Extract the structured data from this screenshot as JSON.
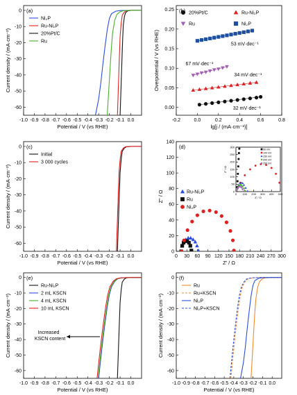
{
  "chart_data": [
    {
      "id": "a",
      "type": "line",
      "panel_label": "(a)",
      "xlabel": "Potential / V (vs RHE)",
      "ylabel": "Current density / (mA·cm⁻²)",
      "xlim": [
        -1.0,
        0.1
      ],
      "ylim": [
        -65,
        3
      ],
      "xticks": [
        -1.0,
        -0.9,
        -0.8,
        -0.7,
        -0.6,
        -0.5,
        -0.4,
        -0.3,
        -0.2,
        -0.1,
        0.0
      ],
      "yticks": [
        0,
        -10,
        -20,
        -30,
        -40,
        -50,
        -60
      ],
      "legend": "top-left",
      "series": [
        {
          "name": "Ni₂P",
          "color": "#2b4de0",
          "x": [
            -0.33,
            -0.3,
            -0.28,
            -0.26,
            -0.24,
            -0.22,
            -0.2,
            -0.18,
            -0.14,
            -0.1,
            0.0,
            0.1
          ],
          "y": [
            -65,
            -55,
            -45,
            -33,
            -22,
            -12,
            -5,
            -2,
            -0.5,
            -0.1,
            0,
            0
          ]
        },
        {
          "name": "Ru-Ni₂P",
          "color": "#e02020",
          "x": [
            -0.125,
            -0.12,
            -0.115,
            -0.11,
            -0.105,
            -0.1,
            -0.09,
            -0.08,
            -0.06,
            -0.04,
            0.0,
            0.1
          ],
          "y": [
            -65,
            -55,
            -45,
            -35,
            -25,
            -16,
            -8,
            -3,
            -1,
            -0.2,
            0,
            0
          ]
        },
        {
          "name": "20%Pt/C",
          "color": "#111111",
          "x": [
            -0.1,
            -0.095,
            -0.09,
            -0.085,
            -0.08,
            -0.075,
            -0.07,
            -0.06,
            -0.05,
            -0.03,
            0.0,
            0.1
          ],
          "y": [
            -65,
            -55,
            -45,
            -35,
            -25,
            -16,
            -9,
            -4,
            -1.5,
            -0.3,
            0,
            0
          ]
        },
        {
          "name": "Ru",
          "color": "#4caf2a",
          "x": [
            -0.22,
            -0.21,
            -0.2,
            -0.19,
            -0.18,
            -0.17,
            -0.15,
            -0.13,
            -0.1,
            -0.07,
            0.0,
            0.1
          ],
          "y": [
            -65,
            -54,
            -43,
            -32,
            -22,
            -14,
            -6,
            -2.5,
            -0.8,
            -0.2,
            0,
            0
          ]
        }
      ]
    },
    {
      "id": "b",
      "type": "scatter",
      "panel_label": "(b)",
      "xlabel": "lg[j / (mA·cm⁻²)]",
      "ylabel": "Overpotential / V (vs RHE)",
      "xlim": [
        -0.2,
        0.8
      ],
      "ylim": [
        -0.02,
        0.26
      ],
      "xticks": [
        -0.2,
        0.0,
        0.2,
        0.4,
        0.6,
        0.8
      ],
      "yticks": [
        0.0,
        0.05,
        0.1,
        0.15,
        0.2,
        0.25
      ],
      "legend": "top",
      "series": [
        {
          "name": "20%Pt/C",
          "color": "#111111",
          "marker": "circle",
          "x": [
            0.02,
            0.08,
            0.14,
            0.2,
            0.26,
            0.32,
            0.38,
            0.44,
            0.5,
            0.56,
            0.6
          ],
          "y": [
            0.007,
            0.009,
            0.011,
            0.013,
            0.015,
            0.017,
            0.019,
            0.021,
            0.023,
            0.025,
            0.027
          ]
        },
        {
          "name": "Ru-Ni₂P",
          "color": "#e02020",
          "marker": "triangle-up",
          "x": [
            -0.04,
            0.02,
            0.08,
            0.14,
            0.2,
            0.26,
            0.32,
            0.38,
            0.44,
            0.5,
            0.56
          ],
          "y": [
            0.044,
            0.046,
            0.048,
            0.05,
            0.052,
            0.054,
            0.056,
            0.058,
            0.06,
            0.062,
            0.064
          ]
        },
        {
          "name": "Ru",
          "color": "#a060b0",
          "marker": "triangle-down",
          "x": [
            -0.04,
            0.0,
            0.04,
            0.08,
            0.12,
            0.16,
            0.2,
            0.24,
            0.28
          ],
          "y": [
            0.082,
            0.085,
            0.088,
            0.09,
            0.093,
            0.096,
            0.098,
            0.101,
            0.104
          ]
        },
        {
          "name": "Ni₂P",
          "color": "#1f4fa0",
          "marker": "square",
          "x": [
            0.0,
            0.04,
            0.08,
            0.12,
            0.16,
            0.2,
            0.24,
            0.28,
            0.32,
            0.36,
            0.4,
            0.44,
            0.48,
            0.52
          ],
          "y": [
            0.17,
            0.172,
            0.174,
            0.176,
            0.178,
            0.18,
            0.182,
            0.184,
            0.186,
            0.188,
            0.19,
            0.192,
            0.194,
            0.196
          ]
        }
      ],
      "annotations": [
        {
          "text": "53 mV·dec⁻¹",
          "x": 0.45,
          "y": 0.158,
          "color": "#1f4fa0"
        },
        {
          "text": "67 mV·dec⁻¹",
          "x": 0.02,
          "y": 0.108,
          "color": "#a060b0"
        },
        {
          "text": "34 mV·dec⁻¹",
          "x": 0.48,
          "y": 0.079,
          "color": "#e02020"
        },
        {
          "text": "32 mV·dec⁻¹",
          "x": 0.47,
          "y": -0.006,
          "color": "#111111"
        }
      ]
    },
    {
      "id": "c",
      "type": "line",
      "panel_label": "(c)",
      "xlabel": "Potential / V (vs RHE)",
      "ylabel": "Current density / (mA·cm⁻²)",
      "xlim": [
        -1.0,
        0.1
      ],
      "ylim": [
        -65,
        3
      ],
      "xticks": [
        -1.0,
        -0.9,
        -0.8,
        -0.7,
        -0.6,
        -0.5,
        -0.4,
        -0.3,
        -0.2,
        -0.1,
        0.0
      ],
      "yticks": [
        0,
        -10,
        -20,
        -30,
        -40,
        -50,
        -60
      ],
      "legend": "top-left",
      "series": [
        {
          "name": "Initial",
          "color": "#111111",
          "x": [
            -0.125,
            -0.12,
            -0.115,
            -0.11,
            -0.105,
            -0.1,
            -0.09,
            -0.08,
            -0.06,
            -0.04,
            0.0,
            0.1
          ],
          "y": [
            -65,
            -55,
            -45,
            -35,
            -25,
            -16,
            -8,
            -3,
            -1,
            -0.2,
            0,
            0
          ]
        },
        {
          "name": "3 000 cycles",
          "color": "#e02020",
          "x": [
            -0.135,
            -0.13,
            -0.125,
            -0.12,
            -0.115,
            -0.11,
            -0.1,
            -0.09,
            -0.07,
            -0.05,
            0.0,
            0.1
          ],
          "y": [
            -65,
            -55,
            -45,
            -35,
            -25,
            -16,
            -8,
            -3,
            -1,
            -0.2,
            0,
            0
          ]
        }
      ]
    },
    {
      "id": "d",
      "type": "scatter",
      "panel_label": "(d)",
      "xlabel": "Z' / Ω",
      "ylabel": "Z\" / Ω",
      "xlim": [
        0,
        300
      ],
      "ylim": [
        0,
        140
      ],
      "xticks": [
        0,
        30,
        60,
        90,
        120,
        150,
        180,
        210,
        240,
        270,
        300
      ],
      "yticks": [
        0,
        20,
        40,
        60,
        80,
        100,
        120,
        140
      ],
      "legend": "left",
      "series": [
        {
          "name": "Ru-Ni₂P",
          "color": "#2b4de0",
          "marker": "triangle-up",
          "x": [
            12,
            16,
            21,
            27,
            34,
            41,
            48,
            54,
            59,
            63
          ],
          "y": [
            0,
            7,
            12,
            15,
            17,
            17,
            15,
            12,
            7,
            1
          ]
        },
        {
          "name": "Ru",
          "color": "#111111",
          "marker": "square",
          "x": [
            14,
            17,
            21,
            26,
            31,
            36,
            40,
            43
          ],
          "y": [
            0,
            7,
            11,
            13,
            13,
            11,
            7,
            1
          ]
        },
        {
          "name": "Ni₂P",
          "color": "#e02020",
          "marker": "circle",
          "x": [
            15,
            22,
            32,
            45,
            60,
            77,
            95,
            113,
            129,
            143,
            154,
            161,
            164
          ],
          "y": [
            0,
            14,
            27,
            38,
            46,
            51,
            52,
            50,
            45,
            37,
            26,
            14,
            1
          ]
        }
      ]
    },
    {
      "id": "d-inset",
      "type": "scatter",
      "xlabel": "Z' / Ω",
      "ylabel": "Z\" / Ω",
      "xlim": [
        0,
        500
      ],
      "ylim": [
        0,
        300
      ],
      "xticks": [
        0,
        100,
        200,
        300,
        400,
        500
      ],
      "yticks": [
        0,
        50,
        100,
        150,
        200,
        250,
        300
      ],
      "legend": "top-right",
      "series": [
        {
          "name": "50 mV",
          "color": "#111111",
          "marker": "square",
          "x": [
            10,
            14,
            18,
            22,
            26,
            30,
            34,
            38
          ],
          "y": [
            0,
            30,
            70,
            120,
            170,
            220,
            260,
            290
          ]
        },
        {
          "name": "100 mV",
          "color": "#e02020",
          "marker": "circle",
          "x": [
            10,
            50,
            100,
            160,
            220,
            280,
            340,
            400,
            450,
            490,
            510
          ],
          "y": [
            0,
            60,
            110,
            150,
            175,
            185,
            180,
            160,
            120,
            60,
            5
          ]
        },
        {
          "name": "150 mV",
          "color": "#2b4de0",
          "marker": "triangle-up",
          "x": [
            10,
            20,
            30,
            45,
            60,
            75,
            90,
            110,
            130
          ],
          "y": [
            0,
            25,
            45,
            57,
            60,
            57,
            45,
            25,
            3
          ]
        },
        {
          "name": "200 mV",
          "color": "#4caf2a",
          "marker": "triangle-down",
          "x": [
            10,
            18,
            28,
            40,
            52,
            64,
            76,
            90,
            104
          ],
          "y": [
            0,
            20,
            34,
            42,
            45,
            42,
            34,
            20,
            3
          ]
        },
        {
          "name": "250 mV",
          "color": "#a060b0",
          "marker": "diamond",
          "x": [
            10,
            16,
            24,
            34,
            44,
            54,
            64,
            74,
            84
          ],
          "y": [
            0,
            16,
            27,
            33,
            35,
            33,
            27,
            16,
            2
          ]
        }
      ]
    },
    {
      "id": "e",
      "type": "line",
      "panel_label": "(e)",
      "xlabel": "Potential / V (vs RHE)",
      "ylabel": "Current density / (mA·cm⁻²)",
      "xlim": [
        -1.0,
        0.1
      ],
      "ylim": [
        -65,
        3
      ],
      "xticks": [
        -1.0,
        -0.9,
        -0.8,
        -0.7,
        -0.6,
        -0.5,
        -0.4,
        -0.3,
        -0.2,
        -0.1,
        0.0
      ],
      "yticks": [
        0,
        -10,
        -20,
        -30,
        -40,
        -50,
        -60
      ],
      "legend": "top-left",
      "annotations": [
        {
          "text": "Increased\nKSCN content"
        }
      ],
      "series": [
        {
          "name": "Ru-Ni₂P",
          "color": "#111111",
          "x": [
            -0.125,
            -0.12,
            -0.115,
            -0.11,
            -0.105,
            -0.1,
            -0.09,
            -0.08,
            -0.06,
            -0.04,
            0.0,
            0.1
          ],
          "y": [
            -65,
            -55,
            -45,
            -35,
            -25,
            -16,
            -8,
            -3,
            -1,
            -0.2,
            0,
            0
          ]
        },
        {
          "name": "2 mL KSCN",
          "color": "#2b4de0",
          "x": [
            -0.3,
            -0.28,
            -0.26,
            -0.24,
            -0.22,
            -0.2,
            -0.18,
            -0.15,
            -0.12,
            -0.08,
            0.0,
            0.1
          ],
          "y": [
            -65,
            -52,
            -40,
            -29,
            -19,
            -11,
            -6,
            -2.5,
            -0.8,
            -0.2,
            0,
            0
          ]
        },
        {
          "name": "4 mL KSCN",
          "color": "#4caf2a",
          "x": [
            -0.305,
            -0.285,
            -0.265,
            -0.245,
            -0.225,
            -0.205,
            -0.185,
            -0.155,
            -0.125,
            -0.085,
            0.0,
            0.1
          ],
          "y": [
            -65,
            -52,
            -40,
            -29,
            -19,
            -11,
            -6,
            -2.5,
            -0.8,
            -0.2,
            0,
            0
          ]
        },
        {
          "name": "10 mL KSCN",
          "color": "#e02020",
          "x": [
            -0.315,
            -0.295,
            -0.275,
            -0.255,
            -0.235,
            -0.215,
            -0.195,
            -0.165,
            -0.135,
            -0.095,
            0.0,
            0.1
          ],
          "y": [
            -65,
            -52,
            -40,
            -29,
            -19,
            -11,
            -6,
            -2.5,
            -0.8,
            -0.2,
            0,
            0
          ]
        }
      ]
    },
    {
      "id": "f",
      "type": "line",
      "panel_label": "(f)",
      "xlabel": "Potential / V (vs RHE)",
      "ylabel": "Current density / (mA·cm⁻²)",
      "xlim": [
        -1.0,
        0.1
      ],
      "ylim": [
        -65,
        3
      ],
      "xticks": [
        -1.0,
        -0.9,
        -0.8,
        -0.7,
        -0.6,
        -0.5,
        -0.4,
        -0.3,
        -0.2,
        -0.1,
        0.0
      ],
      "yticks": [
        0,
        -10,
        -20,
        -30,
        -40,
        -50,
        -60
      ],
      "legend": "top-left",
      "series": [
        {
          "name": "Ru",
          "color": "#f08a30",
          "dash": false,
          "x": [
            -0.22,
            -0.21,
            -0.2,
            -0.19,
            -0.18,
            -0.17,
            -0.15,
            -0.13,
            -0.1,
            -0.07,
            0.0,
            0.1
          ],
          "y": [
            -65,
            -54,
            -43,
            -32,
            -22,
            -14,
            -6,
            -2.5,
            -0.8,
            -0.2,
            0,
            0
          ]
        },
        {
          "name": "Ru+KSCN",
          "color": "#f08a30",
          "dash": true,
          "x": [
            -0.43,
            -0.41,
            -0.39,
            -0.37,
            -0.35,
            -0.33,
            -0.31,
            -0.28,
            -0.25,
            -0.2,
            -0.1,
            0.1
          ],
          "y": [
            -65,
            -52,
            -40,
            -29,
            -19,
            -11,
            -6,
            -2.5,
            -0.8,
            -0.2,
            0,
            0
          ]
        },
        {
          "name": "Ni₂P",
          "color": "#2b4de0",
          "dash": false,
          "x": [
            -0.33,
            -0.3,
            -0.28,
            -0.26,
            -0.24,
            -0.22,
            -0.2,
            -0.18,
            -0.14,
            -0.1,
            0.0,
            0.1
          ],
          "y": [
            -65,
            -55,
            -45,
            -33,
            -22,
            -12,
            -5,
            -2,
            -0.5,
            -0.1,
            0,
            0
          ]
        },
        {
          "name": "Ni₂P+KSCN",
          "color": "#2b4de0",
          "dash": true,
          "x": [
            -0.44,
            -0.42,
            -0.4,
            -0.38,
            -0.36,
            -0.34,
            -0.32,
            -0.29,
            -0.26,
            -0.21,
            -0.1,
            0.1
          ],
          "y": [
            -65,
            -52,
            -40,
            -29,
            -19,
            -11,
            -6,
            -2.5,
            -0.8,
            -0.2,
            0,
            0
          ]
        }
      ]
    }
  ]
}
